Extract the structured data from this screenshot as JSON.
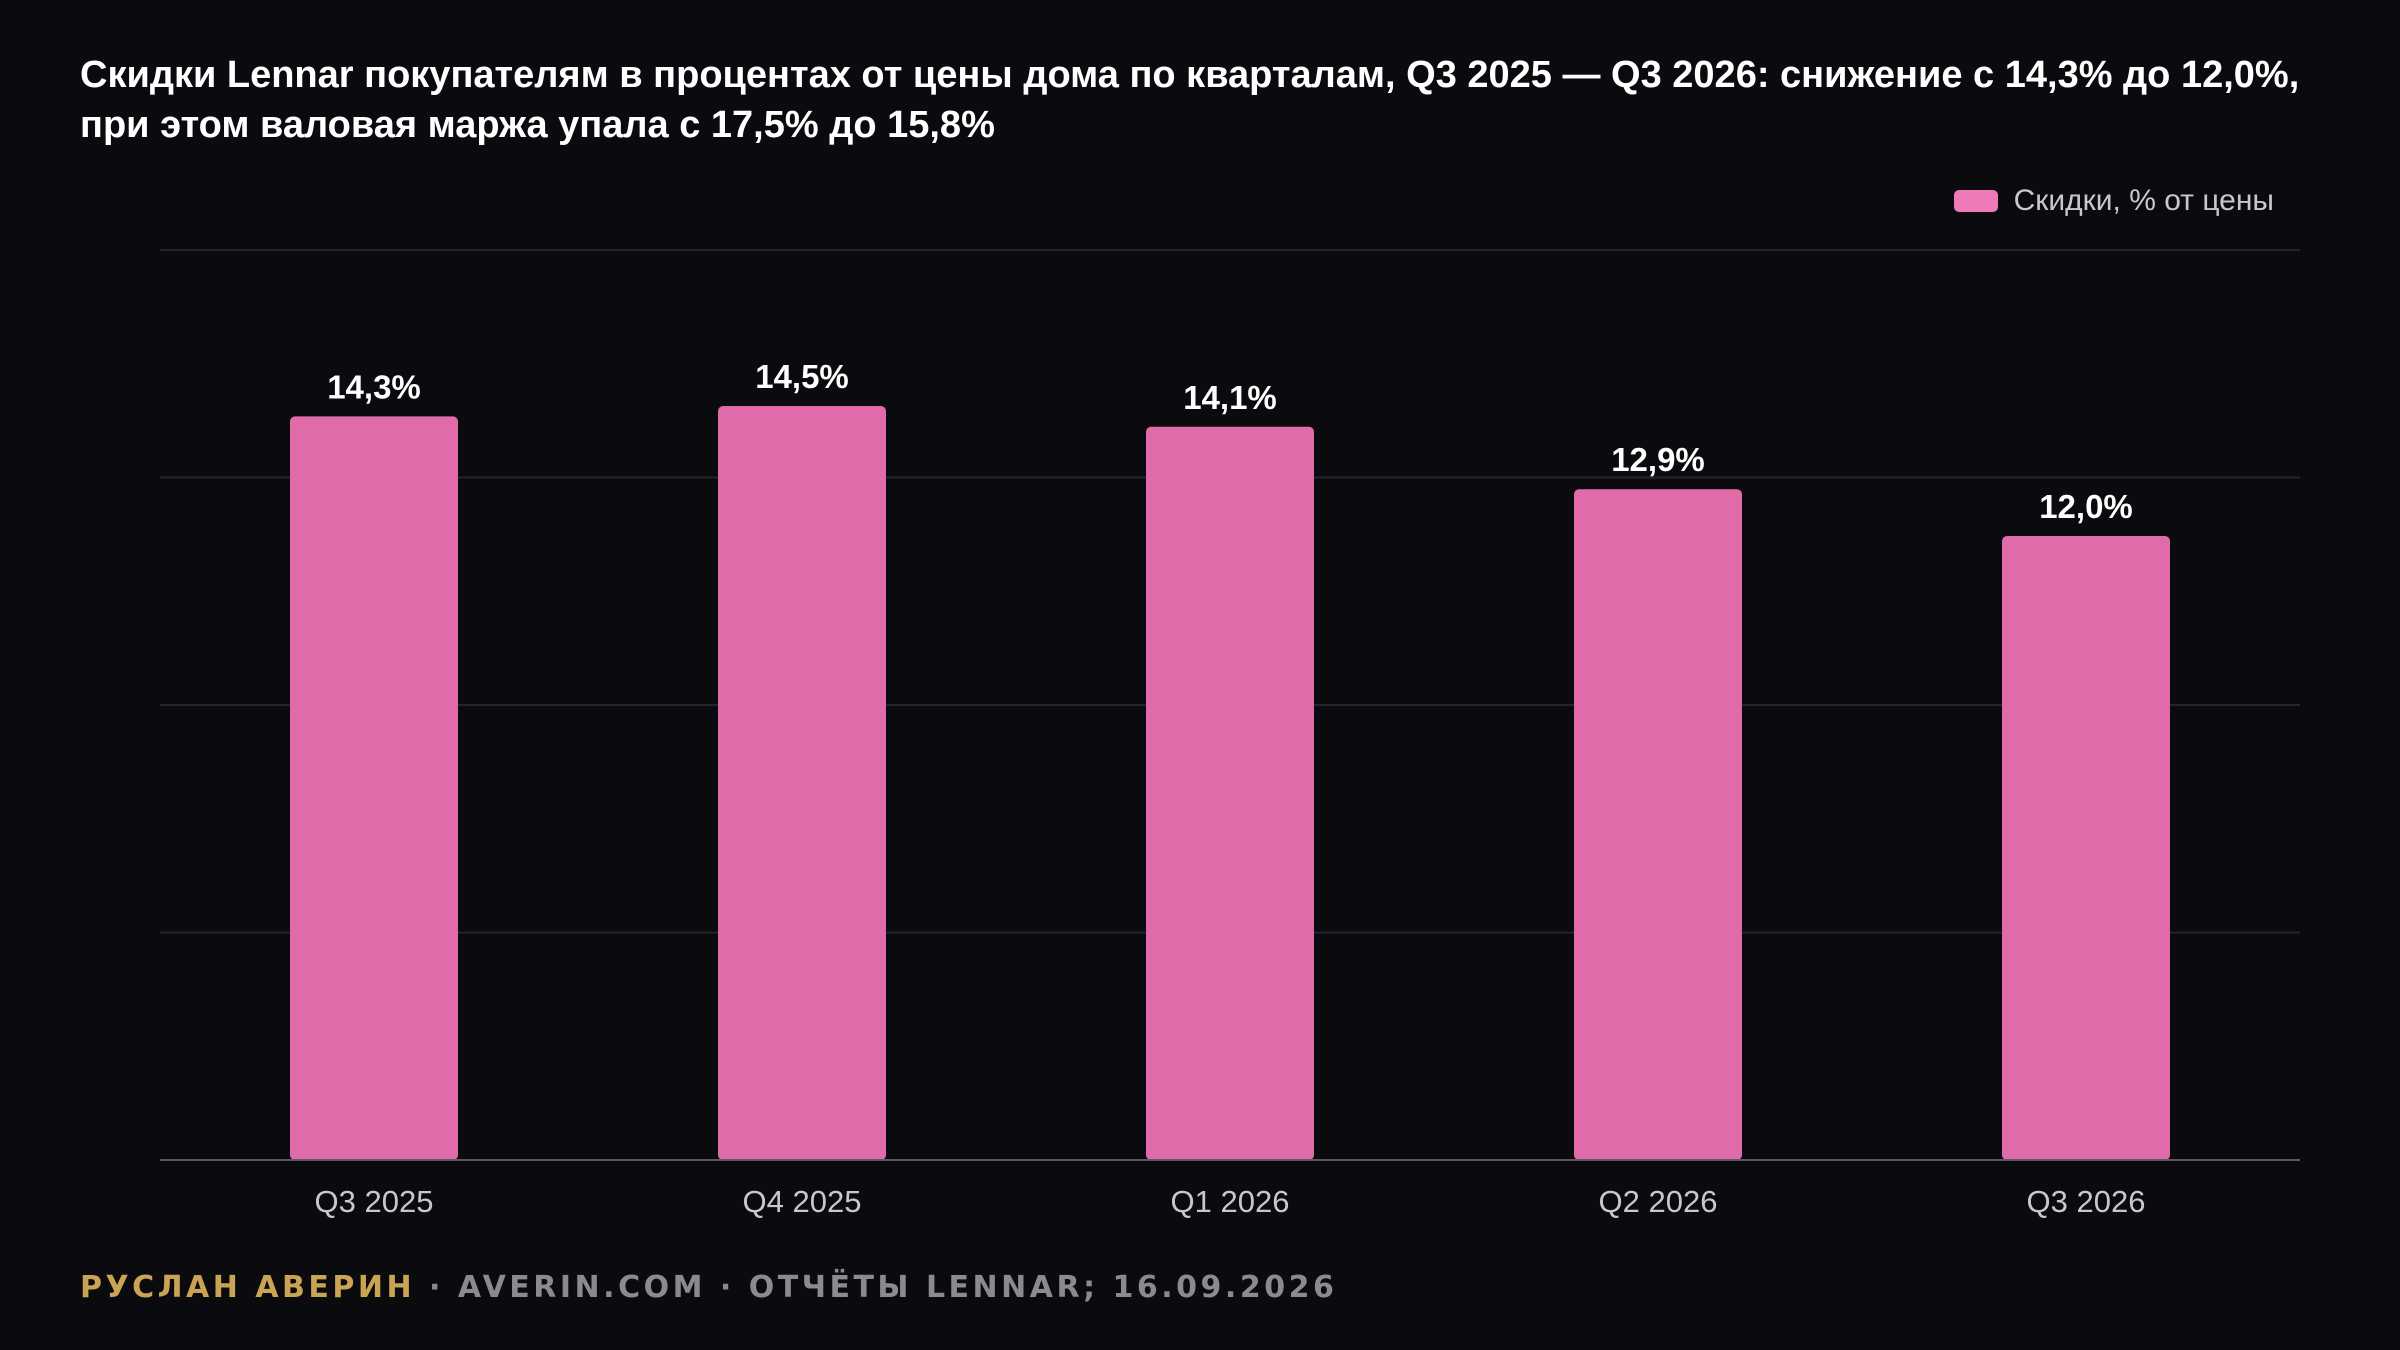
{
  "title": "Скидки Lennar покупателям в процентах от цены дома по кварталам, Q3 2025 — Q3 2026: снижение с 14,3% до 12,0%, при этом валовая маржа упала с 17,5% до 15,8%",
  "colors": {
    "background": "#0b0b0f",
    "bar": "#df6ca8",
    "legend_swatch": "#f07ab8",
    "grid": "#24242a",
    "axis": "#5a5a60",
    "tick_text": "#c8c8cc",
    "label_text": "#ffffff",
    "footer_author": "#c9a455",
    "footer_text": "#8a8a8f"
  },
  "chart_data": {
    "type": "bar",
    "categories": [
      "Q3 2025",
      "Q4 2025",
      "Q1 2026",
      "Q2 2026",
      "Q3 2026"
    ],
    "series": [
      {
        "name": "Скидки, % от цены",
        "values": [
          14.3,
          14.5,
          14.1,
          12.9,
          12.0
        ],
        "labels": [
          "14,3%",
          "14,5%",
          "14,1%",
          "12,9%",
          "12,0%"
        ]
      }
    ],
    "ylim": [
      0,
      17.5
    ],
    "grid": true,
    "legend_position": "top-right",
    "xlabel": "",
    "ylabel": ""
  },
  "footer": {
    "author": "РУСЛАН АВЕРИН",
    "separator": " · ",
    "site": "AVERIN.COM",
    "source": "ОТЧЁТЫ LENNAR; 16.09.2026"
  }
}
